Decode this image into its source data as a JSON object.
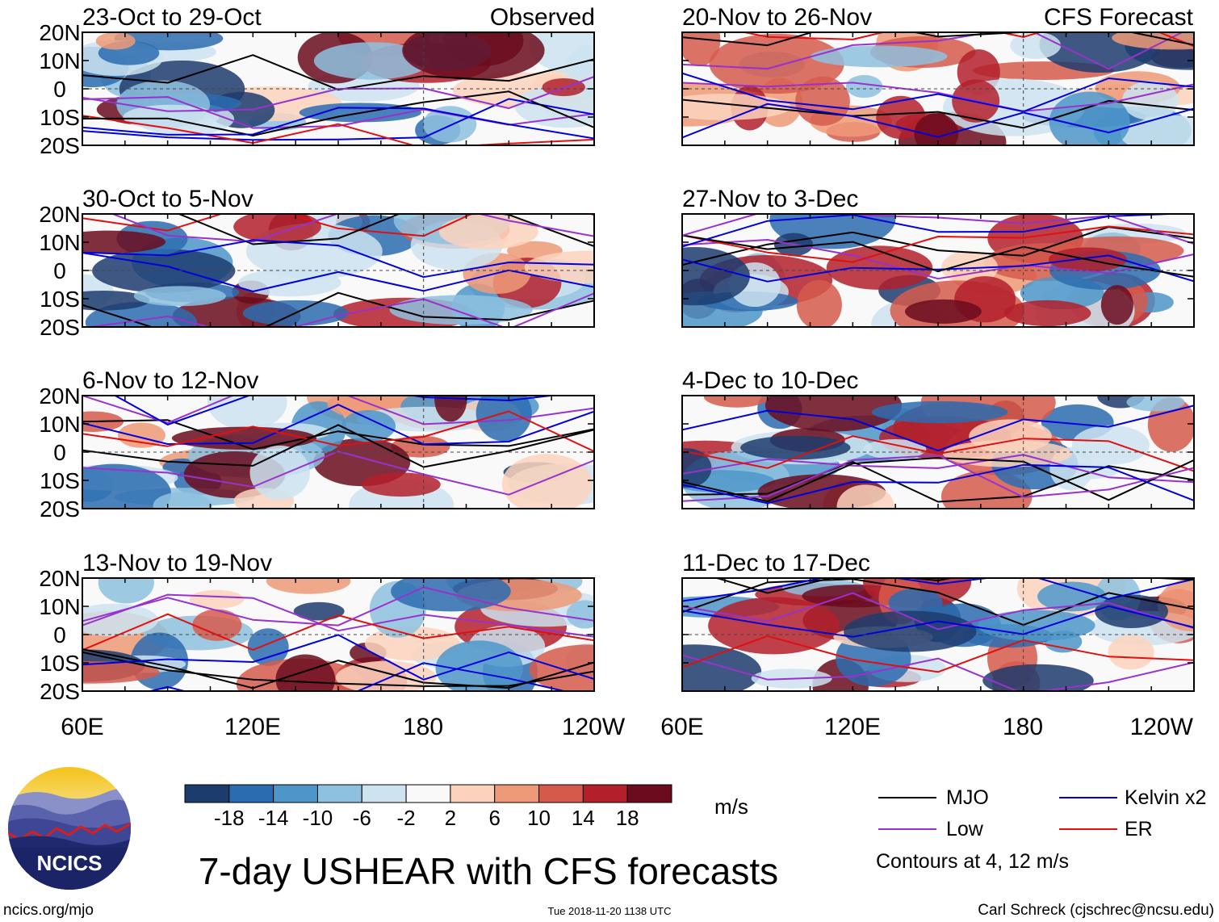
{
  "chart_data": {
    "type": "heatmap",
    "title": "7-day USHEAR with CFS forecasts",
    "units": "m/s",
    "colorbar": {
      "ticks": [
        "-18",
        "-14",
        "-10",
        "-6",
        "-2",
        "2",
        "6",
        "10",
        "14",
        "18"
      ],
      "colors": [
        "#1d3c6e",
        "#2b6cb0",
        "#4d96c9",
        "#8ec1df",
        "#cde3f0",
        "#f9f9f9",
        "#fbd3bd",
        "#ee9a78",
        "#d65a4c",
        "#b3202c",
        "#6b0c1e"
      ]
    },
    "lat_ticks": [
      "20N",
      "10N",
      "0",
      "10S",
      "20S"
    ],
    "lon_ticks": [
      "60E",
      "120E",
      "180",
      "120W"
    ],
    "lon_ticks_right": [
      "60E",
      "120E",
      "180",
      "120W"
    ],
    "observed_label": "Observed",
    "forecast_label": "CFS Forecast",
    "panels_left": [
      {
        "title": "23-Oct to 29-Oct"
      },
      {
        "title": "30-Oct to 5-Nov"
      },
      {
        "title": "6-Nov to 12-Nov"
      },
      {
        "title": "13-Nov to 19-Nov"
      }
    ],
    "panels_right": [
      {
        "title": "20-Nov to 26-Nov"
      },
      {
        "title": "27-Nov to 3-Dec"
      },
      {
        "title": "4-Dec to 10-Dec"
      },
      {
        "title": "11-Dec to 17-Dec"
      }
    ],
    "legend": [
      {
        "label": "MJO",
        "color": "#000000"
      },
      {
        "label": "Kelvin x2",
        "color": "#0000dd"
      },
      {
        "label": "Low",
        "color": "#9932cc"
      },
      {
        "label": "ER",
        "color": "#e01010"
      }
    ],
    "contours_note": "Contours at 4, 12 m/s"
  },
  "logo": {
    "text": "NCICS"
  },
  "footer": {
    "left": "ncics.org/mjo",
    "middle": "Tue 2018-11-20 1138 UTC",
    "right": "Carl Schreck (cjschrec@ncsu.edu)"
  }
}
